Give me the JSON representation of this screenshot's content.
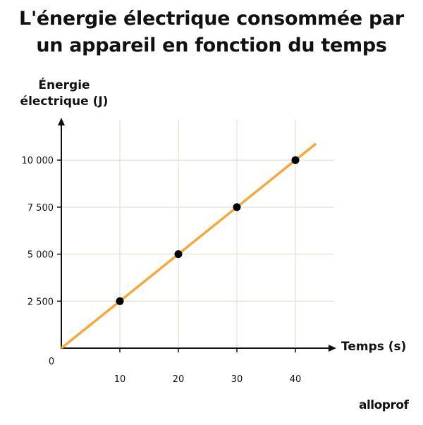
{
  "title_lines": [
    "L'énergie électrique consommée par",
    "un appareil en fonction du temps"
  ],
  "brand": "alloprof",
  "colors": {
    "line": "#F5A93B",
    "point": "#000000",
    "grid": "#E6E3D8",
    "axis": "#111111"
  },
  "chart_data": {
    "type": "line",
    "ylabel_lines": [
      "Énergie",
      "électrique (J)"
    ],
    "xlabel": "Temps (s)",
    "origin_label": "0",
    "x_ticks": [
      10,
      20,
      30,
      40
    ],
    "x_tick_labels": [
      "10",
      "20",
      "30",
      "40"
    ],
    "y_ticks": [
      2500,
      5000,
      7500,
      10000
    ],
    "y_tick_labels": [
      "2 500",
      "5 000",
      "7 500",
      "10 000"
    ],
    "xlim": [
      0,
      46
    ],
    "ylim": [
      0,
      12000
    ],
    "series": [
      {
        "points": [
          {
            "x": 10,
            "y": 2500
          },
          {
            "x": 20,
            "y": 5000
          },
          {
            "x": 30,
            "y": 7500
          },
          {
            "x": 40,
            "y": 10000
          }
        ],
        "line_start": {
          "x": 0,
          "y": 0
        },
        "line_end": {
          "x": 43.5,
          "y": 10875
        }
      }
    ],
    "grid": true
  }
}
